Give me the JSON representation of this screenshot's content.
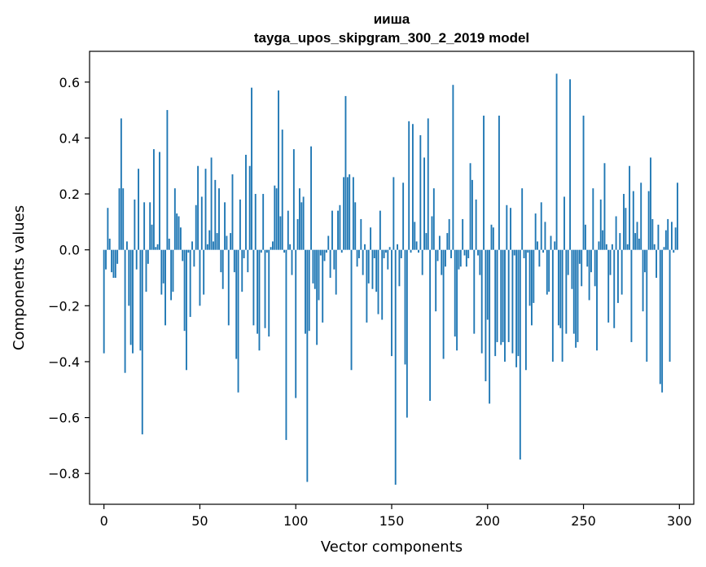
{
  "chart_data": {
    "type": "bar",
    "title": "иишa",
    "subtitle": "tayga_upos_skipgram_300_2_2019 model",
    "xlabel": "Vector components",
    "ylabel": "Components values",
    "xlim": [
      -7.5,
      307.5
    ],
    "ylim": [
      -0.91,
      0.71
    ],
    "xticks": [
      0,
      50,
      100,
      150,
      200,
      250,
      300
    ],
    "xtick_labels": [
      "0",
      "50",
      "100",
      "150",
      "200",
      "250",
      "300"
    ],
    "yticks": [
      -0.8,
      -0.6,
      -0.4,
      -0.2,
      0.0,
      0.2,
      0.4,
      0.6
    ],
    "ytick_labels": [
      "−0.8",
      "−0.6",
      "−0.4",
      "−0.2",
      "0.0",
      "0.2",
      "0.4",
      "0.6"
    ],
    "bar_color": "#1f77b4",
    "grid": false,
    "x": [
      0,
      1,
      2,
      3,
      4,
      5,
      6,
      7,
      8,
      9,
      10,
      11,
      12,
      13,
      14,
      15,
      16,
      17,
      18,
      19,
      20,
      21,
      22,
      23,
      24,
      25,
      26,
      27,
      28,
      29,
      30,
      31,
      32,
      33,
      34,
      35,
      36,
      37,
      38,
      39,
      40,
      41,
      42,
      43,
      44,
      45,
      46,
      47,
      48,
      49,
      50,
      51,
      52,
      53,
      54,
      55,
      56,
      57,
      58,
      59,
      60,
      61,
      62,
      63,
      64,
      65,
      66,
      67,
      68,
      69,
      70,
      71,
      72,
      73,
      74,
      75,
      76,
      77,
      78,
      79,
      80,
      81,
      82,
      83,
      84,
      85,
      86,
      87,
      88,
      89,
      90,
      91,
      92,
      93,
      94,
      95,
      96,
      97,
      98,
      99,
      100,
      101,
      102,
      103,
      104,
      105,
      106,
      107,
      108,
      109,
      110,
      111,
      112,
      113,
      114,
      115,
      116,
      117,
      118,
      119,
      120,
      121,
      122,
      123,
      124,
      125,
      126,
      127,
      128,
      129,
      130,
      131,
      132,
      133,
      134,
      135,
      136,
      137,
      138,
      139,
      140,
      141,
      142,
      143,
      144,
      145,
      146,
      147,
      148,
      149,
      150,
      151,
      152,
      153,
      154,
      155,
      156,
      157,
      158,
      159,
      160,
      161,
      162,
      163,
      164,
      165,
      166,
      167,
      168,
      169,
      170,
      171,
      172,
      173,
      174,
      175,
      176,
      177,
      178,
      179,
      180,
      181,
      182,
      183,
      184,
      185,
      186,
      187,
      188,
      189,
      190,
      191,
      192,
      193,
      194,
      195,
      196,
      197,
      198,
      199,
      200,
      201,
      202,
      203,
      204,
      205,
      206,
      207,
      208,
      209,
      210,
      211,
      212,
      213,
      214,
      215,
      216,
      217,
      218,
      219,
      220,
      221,
      222,
      223,
      224,
      225,
      226,
      227,
      228,
      229,
      230,
      231,
      232,
      233,
      234,
      235,
      236,
      237,
      238,
      239,
      240,
      241,
      242,
      243,
      244,
      245,
      246,
      247,
      248,
      249,
      250,
      251,
      252,
      253,
      254,
      255,
      256,
      257,
      258,
      259,
      260,
      261,
      262,
      263,
      264,
      265,
      266,
      267,
      268,
      269,
      270,
      271,
      272,
      273,
      274,
      275,
      276,
      277,
      278,
      279,
      280,
      281,
      282,
      283,
      284,
      285,
      286,
      287,
      288,
      289,
      290,
      291,
      292,
      293,
      294,
      295,
      296,
      297,
      298,
      299
    ],
    "values": [
      -0.37,
      -0.07,
      0.15,
      0.04,
      -0.08,
      -0.1,
      -0.1,
      -0.05,
      0.22,
      0.47,
      0.22,
      -0.44,
      0.03,
      -0.2,
      -0.34,
      -0.37,
      0.18,
      -0.07,
      0.29,
      -0.36,
      -0.66,
      0.17,
      -0.15,
      -0.05,
      0.17,
      0.09,
      0.36,
      0.01,
      0.02,
      0.35,
      -0.16,
      -0.12,
      -0.27,
      0.5,
      0.04,
      -0.18,
      -0.15,
      0.22,
      0.13,
      0.12,
      0.08,
      -0.04,
      -0.29,
      -0.43,
      -0.01,
      -0.24,
      0.03,
      -0.06,
      0.16,
      0.3,
      -0.2,
      0.19,
      -0.16,
      0.29,
      0.02,
      0.07,
      0.33,
      0.03,
      0.25,
      0.06,
      0.22,
      -0.08,
      -0.14,
      0.17,
      0.05,
      -0.27,
      0.06,
      0.27,
      -0.08,
      -0.39,
      -0.51,
      0.18,
      -0.15,
      -0.03,
      0.34,
      -0.08,
      0.3,
      0.58,
      -0.27,
      0.2,
      -0.3,
      -0.36,
      -0.01,
      0.2,
      -0.28,
      -0.01,
      -0.31,
      0.01,
      0.03,
      0.23,
      0.22,
      0.57,
      0.12,
      0.43,
      -0.01,
      -0.68,
      0.14,
      0.02,
      -0.09,
      0.36,
      -0.53,
      0.11,
      0.22,
      0.17,
      0.19,
      -0.3,
      -0.83,
      -0.29,
      0.37,
      -0.12,
      -0.14,
      -0.34,
      -0.18,
      -0.02,
      -0.26,
      -0.04,
      -0.01,
      0.05,
      -0.1,
      0.14,
      -0.07,
      -0.16,
      0.14,
      0.16,
      -0.01,
      0.26,
      0.55,
      0.26,
      0.27,
      -0.43,
      0.26,
      0.17,
      -0.06,
      -0.03,
      0.11,
      -0.09,
      0.02,
      -0.26,
      -0.12,
      0.08,
      -0.14,
      -0.03,
      -0.15,
      -0.23,
      0.14,
      -0.25,
      -0.03,
      -0.01,
      -0.07,
      0.01,
      -0.38,
      0.26,
      -0.84,
      0.02,
      -0.13,
      -0.03,
      0.24,
      -0.41,
      -0.6,
      0.46,
      -0.01,
      0.45,
      0.1,
      0.03,
      -0.01,
      0.41,
      -0.09,
      0.33,
      0.06,
      0.47,
      -0.54,
      0.12,
      0.22,
      -0.22,
      -0.04,
      0.05,
      -0.09,
      -0.39,
      -0.06,
      0.06,
      0.11,
      -0.03,
      0.59,
      -0.31,
      -0.36,
      -0.07,
      -0.06,
      0.11,
      -0.02,
      -0.06,
      -0.03,
      0.31,
      0.25,
      -0.3,
      0.18,
      -0.02,
      -0.09,
      -0.37,
      0.48,
      -0.47,
      -0.25,
      -0.55,
      0.09,
      0.08,
      -0.38,
      -0.33,
      0.48,
      -0.34,
      -0.33,
      -0.4,
      0.16,
      -0.33,
      0.15,
      -0.37,
      -0.02,
      -0.42,
      -0.38,
      -0.75,
      0.22,
      -0.03,
      -0.43,
      -0.01,
      -0.2,
      -0.27,
      -0.19,
      0.13,
      0.03,
      -0.06,
      0.17,
      -0.01,
      0.1,
      -0.16,
      -0.15,
      0.05,
      -0.4,
      0.03,
      0.63,
      -0.27,
      -0.28,
      -0.4,
      0.19,
      -0.3,
      -0.09,
      0.61,
      -0.14,
      -0.3,
      -0.35,
      -0.33,
      -0.05,
      -0.13,
      0.48,
      0.09,
      -0.06,
      -0.18,
      -0.08,
      0.22,
      -0.13,
      -0.36,
      0.03,
      0.18,
      0.07,
      0.31,
      0.02,
      -0.26,
      -0.09,
      0.02,
      -0.28,
      0.12,
      -0.19,
      0.06,
      -0.16,
      0.2,
      0.15,
      0.02,
      0.3,
      -0.33,
      0.21,
      0.06,
      0.1,
      0.04,
      0.24,
      -0.22,
      -0.08,
      -0.4,
      0.21,
      0.33,
      0.11,
      0.02,
      -0.1,
      0.09,
      -0.48,
      -0.51,
      0.01,
      0.07,
      0.11,
      -0.4,
      0.1,
      -0.01,
      0.08,
      0.24
    ]
  }
}
